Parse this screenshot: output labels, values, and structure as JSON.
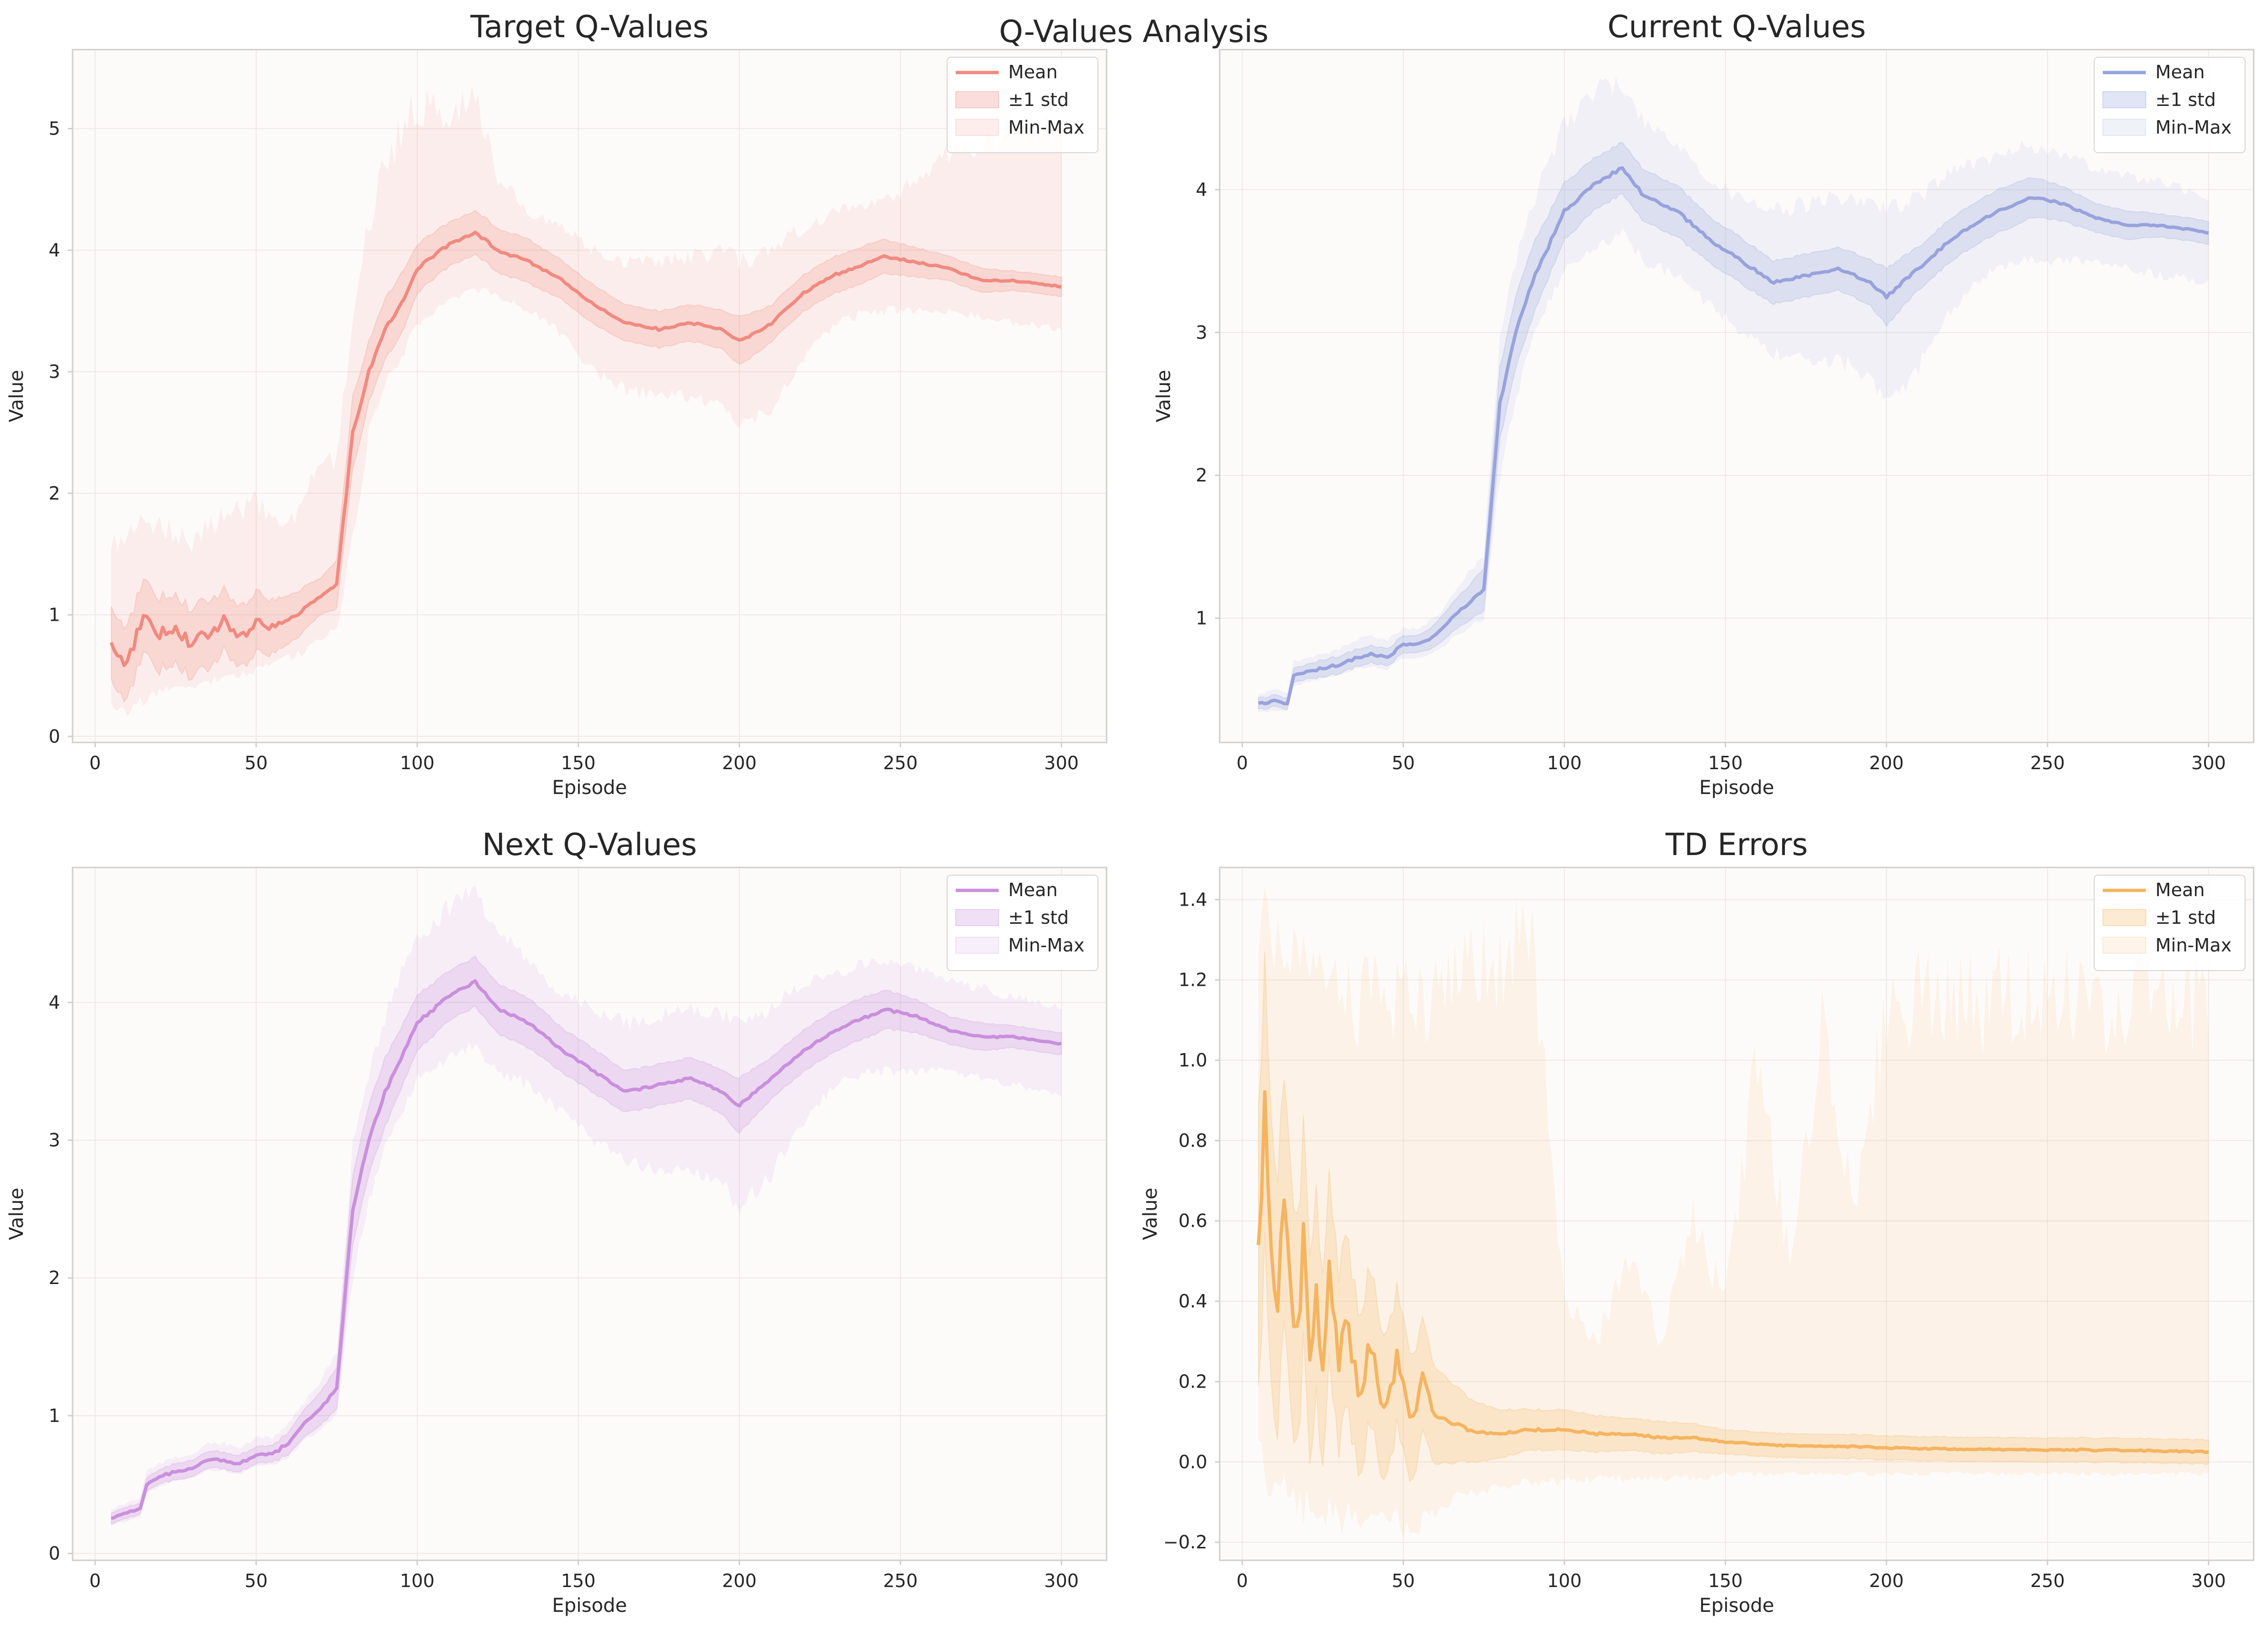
{
  "figure": {
    "title": "Q-Values Analysis"
  },
  "chart_data": [
    {
      "type": "line",
      "title": "Target Q-Values",
      "xlabel": "Episode",
      "ylabel": "Value",
      "xlim": [
        -7,
        314
      ],
      "ylim": [
        -0.05,
        5.65
      ],
      "xticks": [
        0,
        50,
        100,
        150,
        200,
        250,
        300
      ],
      "yticks": [
        0,
        1,
        2,
        3,
        4,
        5
      ],
      "ytick_labels": [
        "0",
        "1",
        "2",
        "3",
        "4",
        "5"
      ],
      "color": "#f08a80",
      "legend": [
        "Mean",
        "±1 std",
        "Min-Max"
      ],
      "legend_position": "upper right",
      "grid": true,
      "series_points": {
        "episodes": [
          5,
          10,
          15,
          20,
          25,
          30,
          35,
          40,
          45,
          50,
          55,
          60,
          65,
          70,
          75,
          80,
          85,
          90,
          95,
          100,
          110,
          118,
          125,
          135,
          145,
          155,
          165,
          175,
          185,
          195,
          200,
          210,
          220,
          230,
          240,
          245,
          255,
          265,
          275,
          285,
          300
        ],
        "mean": [
          0.75,
          0.6,
          1.0,
          0.85,
          0.9,
          0.75,
          0.85,
          0.95,
          0.8,
          0.95,
          0.9,
          0.95,
          1.05,
          1.15,
          1.25,
          2.5,
          3.0,
          3.35,
          3.55,
          3.85,
          4.05,
          4.15,
          4.0,
          3.9,
          3.75,
          3.55,
          3.4,
          3.35,
          3.4,
          3.35,
          3.25,
          3.4,
          3.65,
          3.8,
          3.9,
          3.95,
          3.9,
          3.85,
          3.75,
          3.75,
          3.7
        ],
        "std": [
          0.3,
          0.3,
          0.3,
          0.3,
          0.28,
          0.28,
          0.28,
          0.25,
          0.25,
          0.25,
          0.22,
          0.2,
          0.18,
          0.15,
          0.2,
          0.3,
          0.25,
          0.25,
          0.25,
          0.2,
          0.18,
          0.18,
          0.18,
          0.18,
          0.16,
          0.16,
          0.15,
          0.15,
          0.15,
          0.16,
          0.2,
          0.15,
          0.15,
          0.15,
          0.15,
          0.14,
          0.12,
          0.1,
          0.1,
          0.08,
          0.08
        ],
        "min": [
          0.25,
          0.2,
          0.3,
          0.35,
          0.4,
          0.4,
          0.45,
          0.5,
          0.5,
          0.55,
          0.6,
          0.65,
          0.7,
          0.8,
          0.9,
          1.6,
          2.5,
          2.9,
          3.1,
          3.4,
          3.6,
          3.7,
          3.6,
          3.5,
          3.3,
          3.0,
          2.85,
          2.8,
          2.8,
          2.7,
          2.55,
          2.7,
          3.1,
          3.4,
          3.5,
          3.5,
          3.5,
          3.5,
          3.45,
          3.4,
          3.35
        ],
        "max": [
          1.6,
          1.6,
          1.8,
          1.7,
          1.7,
          1.6,
          1.75,
          1.8,
          1.85,
          1.9,
          1.8,
          1.7,
          2.0,
          2.2,
          2.3,
          3.5,
          4.2,
          4.7,
          5.0,
          5.2,
          5.1,
          5.3,
          4.6,
          4.3,
          4.2,
          4.0,
          3.9,
          3.9,
          3.95,
          4.0,
          3.9,
          4.0,
          4.2,
          4.3,
          4.4,
          4.4,
          4.6,
          4.8,
          4.9,
          5.0,
          5.0
        ]
      }
    },
    {
      "type": "line",
      "title": "Current Q-Values",
      "xlabel": "Episode",
      "ylabel": "Value",
      "xlim": [
        -7,
        314
      ],
      "ylim": [
        0.13,
        4.98
      ],
      "xticks": [
        0,
        50,
        100,
        150,
        200,
        250,
        300
      ],
      "yticks": [
        1,
        2,
        3,
        4
      ],
      "ytick_labels": [
        "1",
        "2",
        "3",
        "4"
      ],
      "color": "#98a3dc",
      "legend": [
        "Mean",
        "±1 std",
        "Min-Max"
      ],
      "legend_position": "upper right",
      "grid": true,
      "series_points": {
        "episodes": [
          5,
          10,
          14,
          16,
          20,
          25,
          30,
          35,
          40,
          45,
          50,
          55,
          60,
          65,
          70,
          75,
          80,
          85,
          90,
          95,
          100,
          110,
          118,
          125,
          135,
          145,
          155,
          165,
          175,
          185,
          195,
          200,
          210,
          220,
          230,
          240,
          245,
          255,
          265,
          275,
          285,
          300
        ],
        "mean": [
          0.4,
          0.42,
          0.4,
          0.6,
          0.62,
          0.65,
          0.67,
          0.72,
          0.75,
          0.72,
          0.82,
          0.82,
          0.88,
          1.0,
          1.1,
          1.2,
          2.5,
          3.0,
          3.35,
          3.6,
          3.85,
          4.05,
          4.15,
          3.95,
          3.85,
          3.65,
          3.5,
          3.35,
          3.4,
          3.45,
          3.35,
          3.25,
          3.45,
          3.65,
          3.8,
          3.9,
          3.95,
          3.9,
          3.8,
          3.75,
          3.75,
          3.7
        ],
        "std": [
          0.04,
          0.04,
          0.04,
          0.05,
          0.05,
          0.06,
          0.06,
          0.06,
          0.06,
          0.06,
          0.06,
          0.06,
          0.08,
          0.1,
          0.12,
          0.15,
          0.25,
          0.25,
          0.25,
          0.22,
          0.2,
          0.18,
          0.18,
          0.18,
          0.18,
          0.16,
          0.16,
          0.15,
          0.15,
          0.15,
          0.16,
          0.2,
          0.15,
          0.15,
          0.15,
          0.15,
          0.14,
          0.12,
          0.1,
          0.1,
          0.08,
          0.08
        ],
        "min": [
          0.34,
          0.35,
          0.35,
          0.52,
          0.55,
          0.58,
          0.6,
          0.64,
          0.66,
          0.64,
          0.72,
          0.72,
          0.76,
          0.85,
          0.93,
          1.0,
          2.0,
          2.55,
          2.95,
          3.2,
          3.45,
          3.6,
          3.7,
          3.5,
          3.4,
          3.2,
          3.0,
          2.85,
          2.8,
          2.8,
          2.7,
          2.5,
          2.75,
          3.15,
          3.4,
          3.5,
          3.5,
          3.5,
          3.5,
          3.45,
          3.4,
          3.35
        ],
        "max": [
          0.47,
          0.5,
          0.48,
          0.7,
          0.72,
          0.75,
          0.78,
          0.84,
          0.88,
          0.84,
          0.93,
          0.93,
          1.0,
          1.15,
          1.3,
          1.45,
          3.0,
          3.5,
          3.9,
          4.2,
          4.45,
          4.7,
          4.75,
          4.45,
          4.3,
          4.05,
          3.95,
          3.85,
          3.9,
          3.95,
          3.9,
          3.85,
          3.95,
          4.15,
          4.2,
          4.3,
          4.3,
          4.25,
          4.15,
          4.1,
          4.05,
          3.95
        ]
      }
    },
    {
      "type": "line",
      "title": "Next Q-Values",
      "xlabel": "Episode",
      "ylabel": "Value",
      "xlim": [
        -7,
        314
      ],
      "ylim": [
        -0.05,
        4.98
      ],
      "xticks": [
        0,
        50,
        100,
        150,
        200,
        250,
        300
      ],
      "yticks": [
        0,
        1,
        2,
        3,
        4
      ],
      "ytick_labels": [
        "0",
        "1",
        "2",
        "3",
        "4"
      ],
      "color": "#c98fdc",
      "legend": [
        "Mean",
        "±1 std",
        "Min-Max"
      ],
      "legend_position": "upper right",
      "grid": true,
      "series_points": {
        "episodes": [
          5,
          10,
          14,
          16,
          20,
          25,
          30,
          35,
          40,
          45,
          50,
          55,
          60,
          65,
          70,
          75,
          80,
          85,
          90,
          95,
          100,
          110,
          118,
          125,
          135,
          145,
          155,
          165,
          175,
          185,
          195,
          200,
          210,
          220,
          230,
          240,
          245,
          255,
          265,
          275,
          285,
          300
        ],
        "mean": [
          0.25,
          0.3,
          0.32,
          0.5,
          0.55,
          0.6,
          0.62,
          0.68,
          0.68,
          0.65,
          0.72,
          0.72,
          0.8,
          0.95,
          1.05,
          1.2,
          2.5,
          3.0,
          3.35,
          3.6,
          3.85,
          4.05,
          4.15,
          3.95,
          3.85,
          3.65,
          3.5,
          3.35,
          3.4,
          3.45,
          3.35,
          3.25,
          3.45,
          3.65,
          3.8,
          3.9,
          3.95,
          3.9,
          3.8,
          3.75,
          3.75,
          3.7
        ],
        "std": [
          0.04,
          0.04,
          0.04,
          0.05,
          0.05,
          0.06,
          0.06,
          0.06,
          0.06,
          0.06,
          0.06,
          0.06,
          0.08,
          0.1,
          0.12,
          0.15,
          0.25,
          0.25,
          0.25,
          0.22,
          0.2,
          0.18,
          0.18,
          0.18,
          0.18,
          0.16,
          0.16,
          0.15,
          0.15,
          0.15,
          0.16,
          0.2,
          0.15,
          0.15,
          0.15,
          0.15,
          0.14,
          0.12,
          0.1,
          0.1,
          0.08,
          0.08
        ],
        "min": [
          0.2,
          0.24,
          0.26,
          0.44,
          0.48,
          0.53,
          0.55,
          0.6,
          0.6,
          0.57,
          0.64,
          0.64,
          0.7,
          0.82,
          0.9,
          1.0,
          2.0,
          2.55,
          2.95,
          3.2,
          3.45,
          3.6,
          3.7,
          3.5,
          3.4,
          3.2,
          3.0,
          2.85,
          2.8,
          2.8,
          2.7,
          2.5,
          2.75,
          3.15,
          3.4,
          3.5,
          3.5,
          3.5,
          3.5,
          3.45,
          3.4,
          3.35
        ],
        "max": [
          0.32,
          0.37,
          0.4,
          0.6,
          0.65,
          0.7,
          0.72,
          0.8,
          0.8,
          0.76,
          0.84,
          0.84,
          0.94,
          1.1,
          1.25,
          1.45,
          3.0,
          3.5,
          3.9,
          4.2,
          4.45,
          4.7,
          4.8,
          4.5,
          4.3,
          4.05,
          3.95,
          3.85,
          3.9,
          3.95,
          3.9,
          3.85,
          3.95,
          4.15,
          4.2,
          4.3,
          4.3,
          4.25,
          4.15,
          4.1,
          4.05,
          3.95
        ]
      }
    },
    {
      "type": "line",
      "title": "TD Errors",
      "xlabel": "Episode",
      "ylabel": "Value",
      "xlim": [
        -7,
        314
      ],
      "ylim": [
        -0.245,
        1.48
      ],
      "xticks": [
        0,
        50,
        100,
        150,
        200,
        250,
        300
      ],
      "yticks": [
        -0.2,
        0.0,
        0.2,
        0.4,
        0.6,
        0.8,
        1.0,
        1.2,
        1.4
      ],
      "ytick_labels": [
        "−0.2",
        "0.0",
        "0.2",
        "0.4",
        "0.6",
        "0.8",
        "1.0",
        "1.2",
        "1.4"
      ],
      "color": "#f5b460",
      "legend": [
        "Mean",
        "±1 std",
        "Min-Max"
      ],
      "legend_position": "upper right",
      "grid": true,
      "series_points": {
        "episodes": [
          5,
          7,
          9,
          11,
          13,
          15,
          17,
          19,
          21,
          23,
          25,
          27,
          30,
          33,
          36,
          40,
          44,
          48,
          52,
          56,
          60,
          65,
          70,
          80,
          90,
          100,
          110,
          120,
          130,
          140,
          150,
          160,
          170,
          180,
          190,
          200,
          220,
          240,
          260,
          280,
          300
        ],
        "mean": [
          0.5,
          0.9,
          0.55,
          0.35,
          0.7,
          0.45,
          0.3,
          0.55,
          0.25,
          0.4,
          0.2,
          0.5,
          0.25,
          0.35,
          0.15,
          0.3,
          0.12,
          0.25,
          0.1,
          0.2,
          0.12,
          0.1,
          0.08,
          0.07,
          0.08,
          0.08,
          0.07,
          0.07,
          0.06,
          0.06,
          0.05,
          0.045,
          0.04,
          0.04,
          0.038,
          0.035,
          0.032,
          0.03,
          0.03,
          0.028,
          0.025
        ],
        "std": [
          0.35,
          0.35,
          0.33,
          0.32,
          0.3,
          0.3,
          0.28,
          0.27,
          0.26,
          0.25,
          0.24,
          0.23,
          0.22,
          0.21,
          0.2,
          0.19,
          0.18,
          0.17,
          0.16,
          0.14,
          0.12,
          0.1,
          0.08,
          0.06,
          0.05,
          0.05,
          0.045,
          0.04,
          0.04,
          0.035,
          0.03,
          0.03,
          0.03,
          0.03,
          0.03,
          0.03,
          0.03,
          0.03,
          0.03,
          0.03,
          0.03
        ],
        "min": [
          0.0,
          0.0,
          -0.05,
          -0.05,
          -0.1,
          -0.08,
          -0.1,
          -0.1,
          -0.12,
          -0.12,
          -0.13,
          -0.12,
          -0.14,
          -0.14,
          -0.15,
          -0.15,
          -0.15,
          -0.15,
          -0.16,
          -0.15,
          -0.12,
          -0.1,
          -0.08,
          -0.06,
          -0.05,
          -0.05,
          -0.04,
          -0.04,
          -0.04,
          -0.04,
          -0.03,
          -0.03,
          -0.03,
          -0.03,
          -0.03,
          -0.03,
          -0.03,
          -0.03,
          -0.03,
          -0.03,
          -0.03
        ],
        "max": [
          1.25,
          1.4,
          1.3,
          1.25,
          1.3,
          1.2,
          1.25,
          1.3,
          1.2,
          1.2,
          1.15,
          1.2,
          1.15,
          1.15,
          1.15,
          1.2,
          1.15,
          1.15,
          1.15,
          1.15,
          1.15,
          1.15,
          1.2,
          1.25,
          1.3,
          0.4,
          0.3,
          0.5,
          0.3,
          0.6,
          0.4,
          1.0,
          0.5,
          1.1,
          0.6,
          1.15,
          1.15,
          1.15,
          1.15,
          1.15,
          1.15
        ]
      }
    }
  ]
}
